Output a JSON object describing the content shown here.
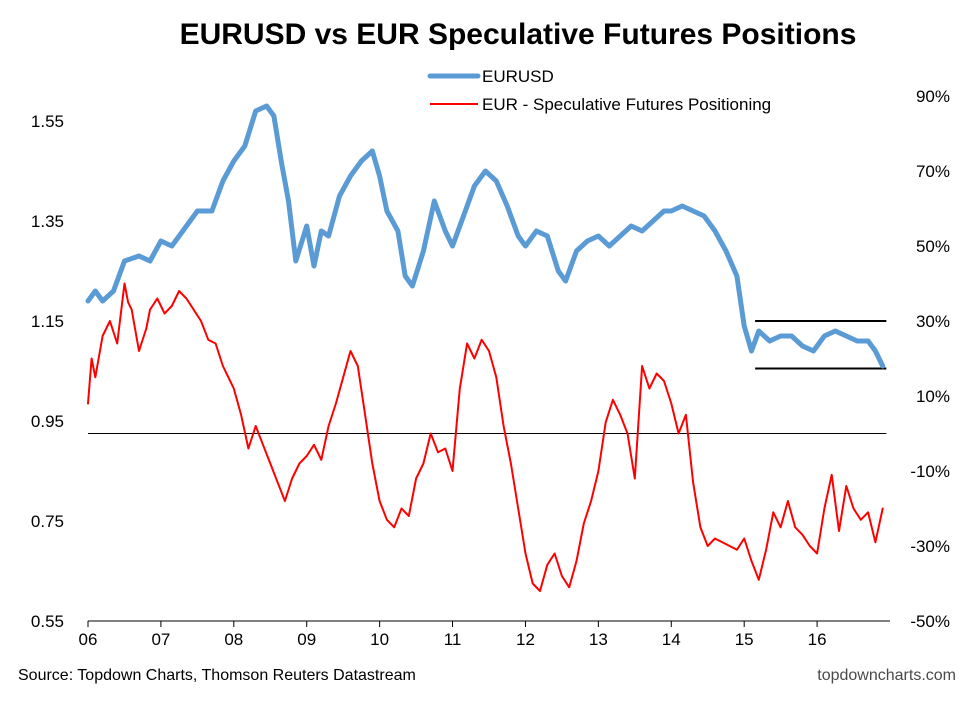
{
  "colors": {
    "eurusd": "#5b9bd5",
    "positioning": "#ff0000",
    "zero_line": "#000000"
  },
  "chart_data": {
    "type": "line",
    "title": "EURUSD vs EUR Speculative Futures Positions",
    "x_tick_labels": [
      "06",
      "07",
      "08",
      "09",
      "10",
      "11",
      "12",
      "13",
      "14",
      "15",
      "16"
    ],
    "x_ticks": [
      2006,
      2007,
      2008,
      2009,
      2010,
      2011,
      2012,
      2013,
      2014,
      2015,
      2016
    ],
    "xlim": [
      2006,
      2017.0
    ],
    "left_axis": {
      "ticks": [
        0.55,
        0.75,
        0.95,
        1.15,
        1.35,
        1.55
      ],
      "tick_labels": [
        "0.55",
        "0.75",
        "0.95",
        "1.15",
        "1.35",
        "1.55"
      ],
      "ylim": [
        0.55,
        1.6
      ]
    },
    "right_axis": {
      "ticks": [
        -0.5,
        -0.3,
        -0.1,
        0.1,
        0.3,
        0.5,
        0.7,
        0.9
      ],
      "tick_labels": [
        "-50%",
        "-30%",
        "-10%",
        "10%",
        "30%",
        "50%",
        "70%",
        "90%"
      ],
      "ylim": [
        -0.5,
        0.9
      ]
    },
    "legend": {
      "placement": "top-center",
      "entries": [
        "EURUSD",
        "EUR - Speculative Futures Positioning"
      ]
    },
    "series": [
      {
        "name": "EURUSD",
        "axis": "left",
        "x": [
          2006.0,
          2006.1,
          2006.2,
          2006.35,
          2006.5,
          2006.7,
          2006.85,
          2007.0,
          2007.15,
          2007.3,
          2007.5,
          2007.7,
          2007.85,
          2008.0,
          2008.15,
          2008.3,
          2008.45,
          2008.55,
          2008.65,
          2008.75,
          2008.85,
          2009.0,
          2009.1,
          2009.2,
          2009.3,
          2009.45,
          2009.6,
          2009.75,
          2009.9,
          2010.0,
          2010.1,
          2010.25,
          2010.35,
          2010.45,
          2010.6,
          2010.75,
          2010.9,
          2011.0,
          2011.15,
          2011.3,
          2011.45,
          2011.6,
          2011.75,
          2011.9,
          2012.0,
          2012.15,
          2012.3,
          2012.45,
          2012.55,
          2012.7,
          2012.85,
          2013.0,
          2013.15,
          2013.3,
          2013.45,
          2013.6,
          2013.75,
          2013.9,
          2014.0,
          2014.15,
          2014.3,
          2014.45,
          2014.6,
          2014.75,
          2014.9,
          2015.0,
          2015.1,
          2015.2,
          2015.35,
          2015.5,
          2015.65,
          2015.8,
          2015.95,
          2016.1,
          2016.25,
          2016.4,
          2016.55,
          2016.7,
          2016.8,
          2016.9
        ],
        "y": [
          1.19,
          1.21,
          1.19,
          1.21,
          1.27,
          1.28,
          1.27,
          1.31,
          1.3,
          1.33,
          1.37,
          1.37,
          1.43,
          1.47,
          1.5,
          1.57,
          1.58,
          1.56,
          1.47,
          1.39,
          1.27,
          1.34,
          1.26,
          1.33,
          1.32,
          1.4,
          1.44,
          1.47,
          1.49,
          1.44,
          1.37,
          1.33,
          1.24,
          1.22,
          1.29,
          1.39,
          1.33,
          1.3,
          1.36,
          1.42,
          1.45,
          1.43,
          1.38,
          1.32,
          1.3,
          1.33,
          1.32,
          1.25,
          1.23,
          1.29,
          1.31,
          1.32,
          1.3,
          1.32,
          1.34,
          1.33,
          1.35,
          1.37,
          1.37,
          1.38,
          1.37,
          1.36,
          1.33,
          1.29,
          1.24,
          1.14,
          1.09,
          1.13,
          1.11,
          1.12,
          1.12,
          1.1,
          1.09,
          1.12,
          1.13,
          1.12,
          1.11,
          1.11,
          1.09,
          1.06
        ]
      },
      {
        "name": "EUR - Speculative Futures Positioning",
        "axis": "right",
        "x": [
          2006.0,
          2006.05,
          2006.1,
          2006.2,
          2006.3,
          2006.4,
          2006.5,
          2006.55,
          2006.6,
          2006.7,
          2006.8,
          2006.85,
          2006.95,
          2007.05,
          2007.15,
          2007.25,
          2007.35,
          2007.45,
          2007.55,
          2007.65,
          2007.75,
          2007.85,
          2008.0,
          2008.1,
          2008.2,
          2008.3,
          2008.4,
          2008.5,
          2008.6,
          2008.7,
          2008.8,
          2008.9,
          2009.0,
          2009.1,
          2009.2,
          2009.3,
          2009.4,
          2009.5,
          2009.6,
          2009.7,
          2009.8,
          2009.9,
          2010.0,
          2010.1,
          2010.2,
          2010.3,
          2010.4,
          2010.5,
          2010.6,
          2010.7,
          2010.8,
          2010.9,
          2011.0,
          2011.1,
          2011.2,
          2011.3,
          2011.4,
          2011.5,
          2011.6,
          2011.7,
          2011.8,
          2011.9,
          2012.0,
          2012.1,
          2012.2,
          2012.3,
          2012.4,
          2012.5,
          2012.6,
          2012.7,
          2012.8,
          2012.9,
          2013.0,
          2013.1,
          2013.2,
          2013.3,
          2013.4,
          2013.5,
          2013.6,
          2013.7,
          2013.8,
          2013.9,
          2014.0,
          2014.1,
          2014.2,
          2014.3,
          2014.4,
          2014.5,
          2014.6,
          2014.7,
          2014.8,
          2014.9,
          2015.0,
          2015.1,
          2015.2,
          2015.3,
          2015.4,
          2015.5,
          2015.6,
          2015.7,
          2015.8,
          2015.9,
          2016.0,
          2016.1,
          2016.2,
          2016.3,
          2016.4,
          2016.5,
          2016.6,
          2016.7,
          2016.8,
          2016.9
        ],
        "y": [
          0.08,
          0.2,
          0.15,
          0.26,
          0.3,
          0.24,
          0.4,
          0.35,
          0.33,
          0.22,
          0.28,
          0.33,
          0.36,
          0.32,
          0.34,
          0.38,
          0.36,
          0.33,
          0.3,
          0.25,
          0.24,
          0.18,
          0.12,
          0.05,
          -0.04,
          0.02,
          -0.03,
          -0.08,
          -0.13,
          -0.18,
          -0.12,
          -0.08,
          -0.06,
          -0.03,
          -0.07,
          0.02,
          0.08,
          0.15,
          0.22,
          0.18,
          0.05,
          -0.08,
          -0.18,
          -0.23,
          -0.25,
          -0.2,
          -0.22,
          -0.12,
          -0.08,
          0.0,
          -0.05,
          -0.04,
          -0.1,
          0.12,
          0.24,
          0.2,
          0.25,
          0.22,
          0.15,
          0.02,
          -0.08,
          -0.2,
          -0.32,
          -0.4,
          -0.42,
          -0.35,
          -0.32,
          -0.38,
          -0.41,
          -0.34,
          -0.24,
          -0.18,
          -0.1,
          0.03,
          0.09,
          0.05,
          0.0,
          -0.12,
          0.18,
          0.12,
          0.16,
          0.14,
          0.08,
          0.0,
          0.05,
          -0.13,
          -0.25,
          -0.3,
          -0.28,
          -0.29,
          -0.3,
          -0.31,
          -0.28,
          -0.34,
          -0.39,
          -0.31,
          -0.21,
          -0.25,
          -0.18,
          -0.25,
          -0.27,
          -0.3,
          -0.32,
          -0.2,
          -0.11,
          -0.26,
          -0.14,
          -0.2,
          -0.23,
          -0.21,
          -0.29,
          -0.2
        ]
      }
    ],
    "annotations": [
      {
        "type": "hline",
        "axis": "right",
        "y": 0,
        "x_range": [
          2006,
          2016.95
        ]
      },
      {
        "type": "hline",
        "axis": "left",
        "y": 1.15,
        "x_range": [
          2015.15,
          2016.95
        ]
      },
      {
        "type": "hline",
        "axis": "left",
        "y": 1.055,
        "x_range": [
          2015.15,
          2016.95
        ]
      }
    ]
  },
  "footer": {
    "source": "Source: Topdown Charts, Thomson Reuters Datastream",
    "brand": "topdowncharts.com"
  }
}
